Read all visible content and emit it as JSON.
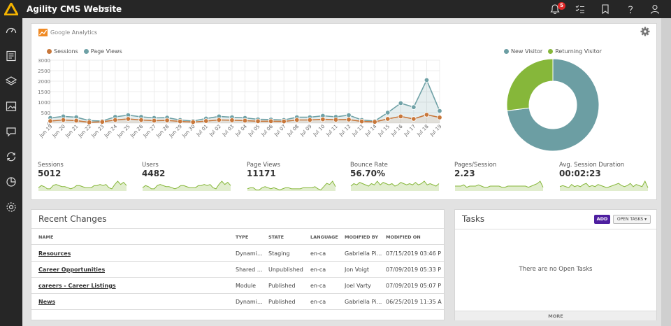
{
  "topbar": {
    "site_title": "Agility CMS Website",
    "notification_count": "5",
    "icons": [
      "bell-icon",
      "checklist-icon",
      "bookmark-icon",
      "help-icon",
      "user-icon"
    ]
  },
  "sidebar": {
    "icons": [
      "dashboard-icon",
      "pages-icon",
      "layers-icon",
      "media-icon",
      "comments-icon",
      "sync-icon",
      "analytics-icon",
      "settings-icon"
    ]
  },
  "colors": {
    "sessions": "#c8773a",
    "page_views": "#6fa1a6",
    "new_visitor": "#6c9ea3",
    "returning_visitor": "#86b73a",
    "accent": "#4e1fa0"
  },
  "ga": {
    "brand": "Google",
    "brand_sub": "Analytics"
  },
  "chart_data": [
    {
      "type": "line",
      "categories": [
        "Jun 19",
        "Jun 20",
        "Jun 21",
        "Jun 22",
        "Jun 23",
        "Jun 24",
        "Jun 25",
        "Jun 26",
        "Jun 27",
        "Jun 28",
        "Jun 29",
        "Jun 30",
        "Jul 01",
        "Jul 02",
        "Jul 03",
        "Jul 04",
        "Jul 05",
        "Jul 06",
        "Jul 07",
        "Jul 08",
        "Jul 09",
        "Jul 10",
        "Jul 11",
        "Jul 12",
        "Jul 13",
        "Jul 14",
        "Jul 15",
        "Jul 16",
        "Jul 17",
        "Jul 18",
        "Jul 19"
      ],
      "series": [
        {
          "name": "Sessions",
          "values": [
            100,
            150,
            120,
            40,
            60,
            150,
            200,
            150,
            120,
            130,
            80,
            50,
            100,
            150,
            140,
            120,
            90,
            90,
            80,
            150,
            150,
            180,
            160,
            170,
            80,
            60,
            200,
            320,
            200,
            400,
            270
          ]
        },
        {
          "name": "Page Views",
          "values": [
            250,
            320,
            280,
            120,
            100,
            300,
            380,
            300,
            250,
            260,
            150,
            100,
            220,
            320,
            280,
            250,
            180,
            170,
            150,
            280,
            280,
            350,
            300,
            380,
            150,
            100,
            500,
            950,
            760,
            2050,
            580
          ]
        }
      ],
      "yticks": [
        "0",
        "500",
        "1000",
        "1500",
        "2000",
        "2500",
        "3000"
      ],
      "ylim": [
        0,
        3000
      ],
      "legend": "top-left"
    },
    {
      "type": "pie",
      "categories": [
        "New Visitor",
        "Returning Visitor"
      ],
      "values": [
        73,
        27
      ],
      "legend": "top-center"
    }
  ],
  "stats": [
    {
      "label": "Sessions",
      "value": "5012",
      "spark": [
        3,
        5,
        4,
        2,
        2,
        5,
        6,
        5,
        4,
        4,
        3,
        2,
        3,
        5,
        5,
        4,
        3,
        3,
        3,
        5,
        5,
        6,
        5,
        6,
        3,
        2,
        6,
        9,
        6,
        8,
        5
      ]
    },
    {
      "label": "Users",
      "value": "4482",
      "spark": [
        3,
        5,
        4,
        2,
        2,
        5,
        6,
        5,
        4,
        4,
        3,
        2,
        3,
        5,
        5,
        4,
        3,
        3,
        3,
        5,
        5,
        6,
        5,
        6,
        3,
        2,
        6,
        9,
        6,
        8,
        5
      ]
    },
    {
      "label": "Page Views",
      "value": "11171",
      "spark": [
        2,
        3,
        3,
        1,
        1,
        3,
        4,
        3,
        2,
        3,
        2,
        1,
        2,
        3,
        3,
        2,
        2,
        2,
        2,
        3,
        3,
        3,
        3,
        4,
        2,
        1,
        4,
        7,
        6,
        9,
        4
      ]
    },
    {
      "label": "Bounce Rate",
      "value": "56.70%",
      "spark": [
        4,
        6,
        5,
        7,
        6,
        5,
        4,
        6,
        5,
        8,
        5,
        7,
        6,
        5,
        6,
        4,
        5,
        7,
        6,
        5,
        6,
        5,
        7,
        5,
        6,
        8,
        5,
        6,
        5,
        4,
        6
      ]
    },
    {
      "label": "Pages/Session",
      "value": "2.23",
      "spark": [
        4,
        4,
        4,
        5,
        3,
        4,
        4,
        4,
        5,
        4,
        3,
        3,
        4,
        4,
        4,
        4,
        3,
        3,
        4,
        4,
        4,
        4,
        4,
        4,
        4,
        3,
        4,
        5,
        6,
        8,
        3
      ]
    },
    {
      "label": "Avg. Session Duration",
      "value": "00:02:23",
      "spark": [
        4,
        5,
        4,
        3,
        6,
        4,
        5,
        4,
        6,
        7,
        4,
        5,
        4,
        6,
        5,
        4,
        3,
        4,
        5,
        6,
        7,
        5,
        4,
        5,
        7,
        4,
        6,
        5,
        4,
        9,
        3
      ]
    }
  ],
  "recent_changes": {
    "title": "Recent Changes",
    "columns": [
      "NAME",
      "TYPE",
      "STATE",
      "LANGUAGE",
      "MODIFIED BY",
      "MODIFIED ON"
    ],
    "rows": [
      {
        "name": "Resources",
        "type": "Dynami…",
        "state": "Staging",
        "language": "en-ca",
        "modified_by": "Gabriella Pi…",
        "modified_on": "07/15/2019 03:46 P…"
      },
      {
        "name": "Career Opportunities",
        "type": "Shared …",
        "state": "Unpublished",
        "language": "en-ca",
        "modified_by": "Jon Voigt",
        "modified_on": "07/09/2019 05:33 P…"
      },
      {
        "name": "careers - Career Listings",
        "type": "Module",
        "state": "Published",
        "language": "en-ca",
        "modified_by": "Joel Varty",
        "modified_on": "07/09/2019 05:07 P…"
      },
      {
        "name": "News",
        "type": "Dynami…",
        "state": "Published",
        "language": "en-ca",
        "modified_by": "Gabriella Pi…",
        "modified_on": "06/25/2019 11:35 A…"
      }
    ]
  },
  "tasks": {
    "title": "Tasks",
    "add_label": "ADD",
    "open_tasks_label": "OPEN TASKS ▾",
    "empty_text": "There are no Open Tasks",
    "more_label": "MORE"
  }
}
